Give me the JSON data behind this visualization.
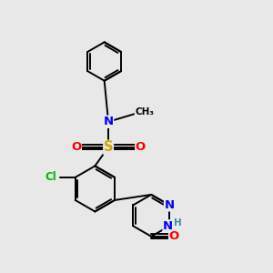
{
  "bg_color": "#e8e8e8",
  "bond_color": "#000000",
  "atom_colors": {
    "N": "#0000ff",
    "O": "#ff0000",
    "S": "#ccaa00",
    "Cl": "#00bb00",
    "H": "#4488aa",
    "C": "#000000"
  },
  "font_size": 8.5,
  "line_width": 1.4,
  "figsize": [
    3.0,
    3.0
  ],
  "dpi": 100,
  "xlim": [
    0,
    10
  ],
  "ylim": [
    0,
    10
  ]
}
